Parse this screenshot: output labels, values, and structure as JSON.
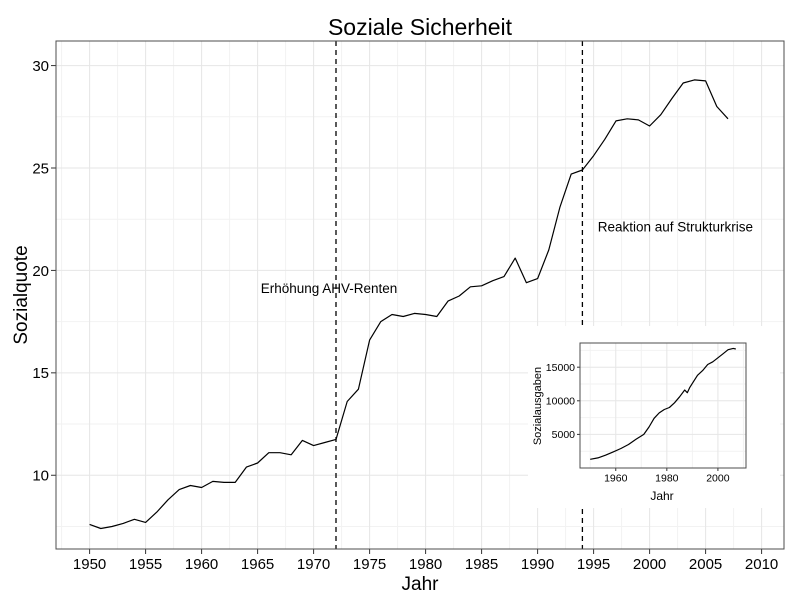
{
  "chart_data": [
    {
      "type": "line",
      "title": "Soziale Sicherheit",
      "xlabel": "Jahr",
      "ylabel": "Sozialquote",
      "xlim": [
        1947,
        2012
      ],
      "ylim": [
        6.4,
        31.2
      ],
      "xticks": [
        1950,
        1955,
        1960,
        1965,
        1970,
        1975,
        1980,
        1985,
        1990,
        1995,
        2000,
        2005,
        2010
      ],
      "yticks": [
        10,
        15,
        20,
        25,
        30
      ],
      "grid": true,
      "x": [
        1950,
        1951,
        1952,
        1953,
        1954,
        1955,
        1956,
        1957,
        1958,
        1959,
        1960,
        1961,
        1962,
        1963,
        1964,
        1965,
        1966,
        1967,
        1968,
        1969,
        1970,
        1971,
        1972,
        1973,
        1974,
        1975,
        1976,
        1977,
        1978,
        1979,
        1980,
        1981,
        1982,
        1983,
        1984,
        1985,
        1986,
        1987,
        1988,
        1989,
        1990,
        1991,
        1992,
        1993,
        1994,
        1995,
        1996,
        1997,
        1998,
        1999,
        2000,
        2001,
        2002,
        2003,
        2004,
        2005,
        2006,
        2007
      ],
      "y": [
        7.6,
        7.4,
        7.5,
        7.65,
        7.85,
        7.7,
        8.2,
        8.8,
        9.3,
        9.5,
        9.4,
        9.7,
        9.65,
        9.65,
        10.4,
        10.6,
        11.1,
        11.1,
        11.0,
        11.7,
        11.45,
        11.6,
        11.75,
        13.6,
        14.2,
        16.6,
        17.5,
        17.85,
        17.75,
        17.9,
        17.85,
        17.75,
        18.5,
        18.75,
        19.2,
        19.25,
        19.5,
        19.7,
        20.6,
        19.4,
        19.6,
        21.0,
        23.1,
        24.7,
        24.9,
        25.6,
        26.4,
        27.3,
        27.4,
        27.35,
        27.05,
        27.6,
        28.4,
        29.15,
        29.3,
        29.25,
        28.0,
        27.4
      ],
      "vlines": [
        {
          "x": 1972,
          "label": "Erhöhung AHV-Renten",
          "label_y": 18.9
        },
        {
          "x": 1994,
          "label": "Reaktion auf Strukturkrise",
          "label_y": 21.9
        }
      ]
    },
    {
      "type": "line",
      "title": "",
      "xlabel": "Jahr",
      "ylabel": "Sozialausgaben",
      "xlim": [
        1946,
        2011
      ],
      "ylim": [
        0,
        18600
      ],
      "xticks": [
        1960,
        1980,
        2000
      ],
      "yticks": [
        5000,
        10000,
        15000
      ],
      "grid": true,
      "x": [
        1950,
        1953,
        1956,
        1959,
        1962,
        1965,
        1968,
        1971,
        1973,
        1975,
        1977,
        1979,
        1981,
        1983,
        1985,
        1987,
        1988,
        1989,
        1990,
        1992,
        1994,
        1996,
        1998,
        2000,
        2002,
        2004,
        2006,
        2007
      ],
      "y": [
        1300,
        1500,
        1900,
        2400,
        2900,
        3500,
        4300,
        5000,
        6100,
        7400,
        8200,
        8700,
        9000,
        9700,
        10600,
        11600,
        11200,
        12000,
        12600,
        13800,
        14500,
        15400,
        15800,
        16400,
        17000,
        17600,
        17800,
        17700
      ]
    }
  ]
}
